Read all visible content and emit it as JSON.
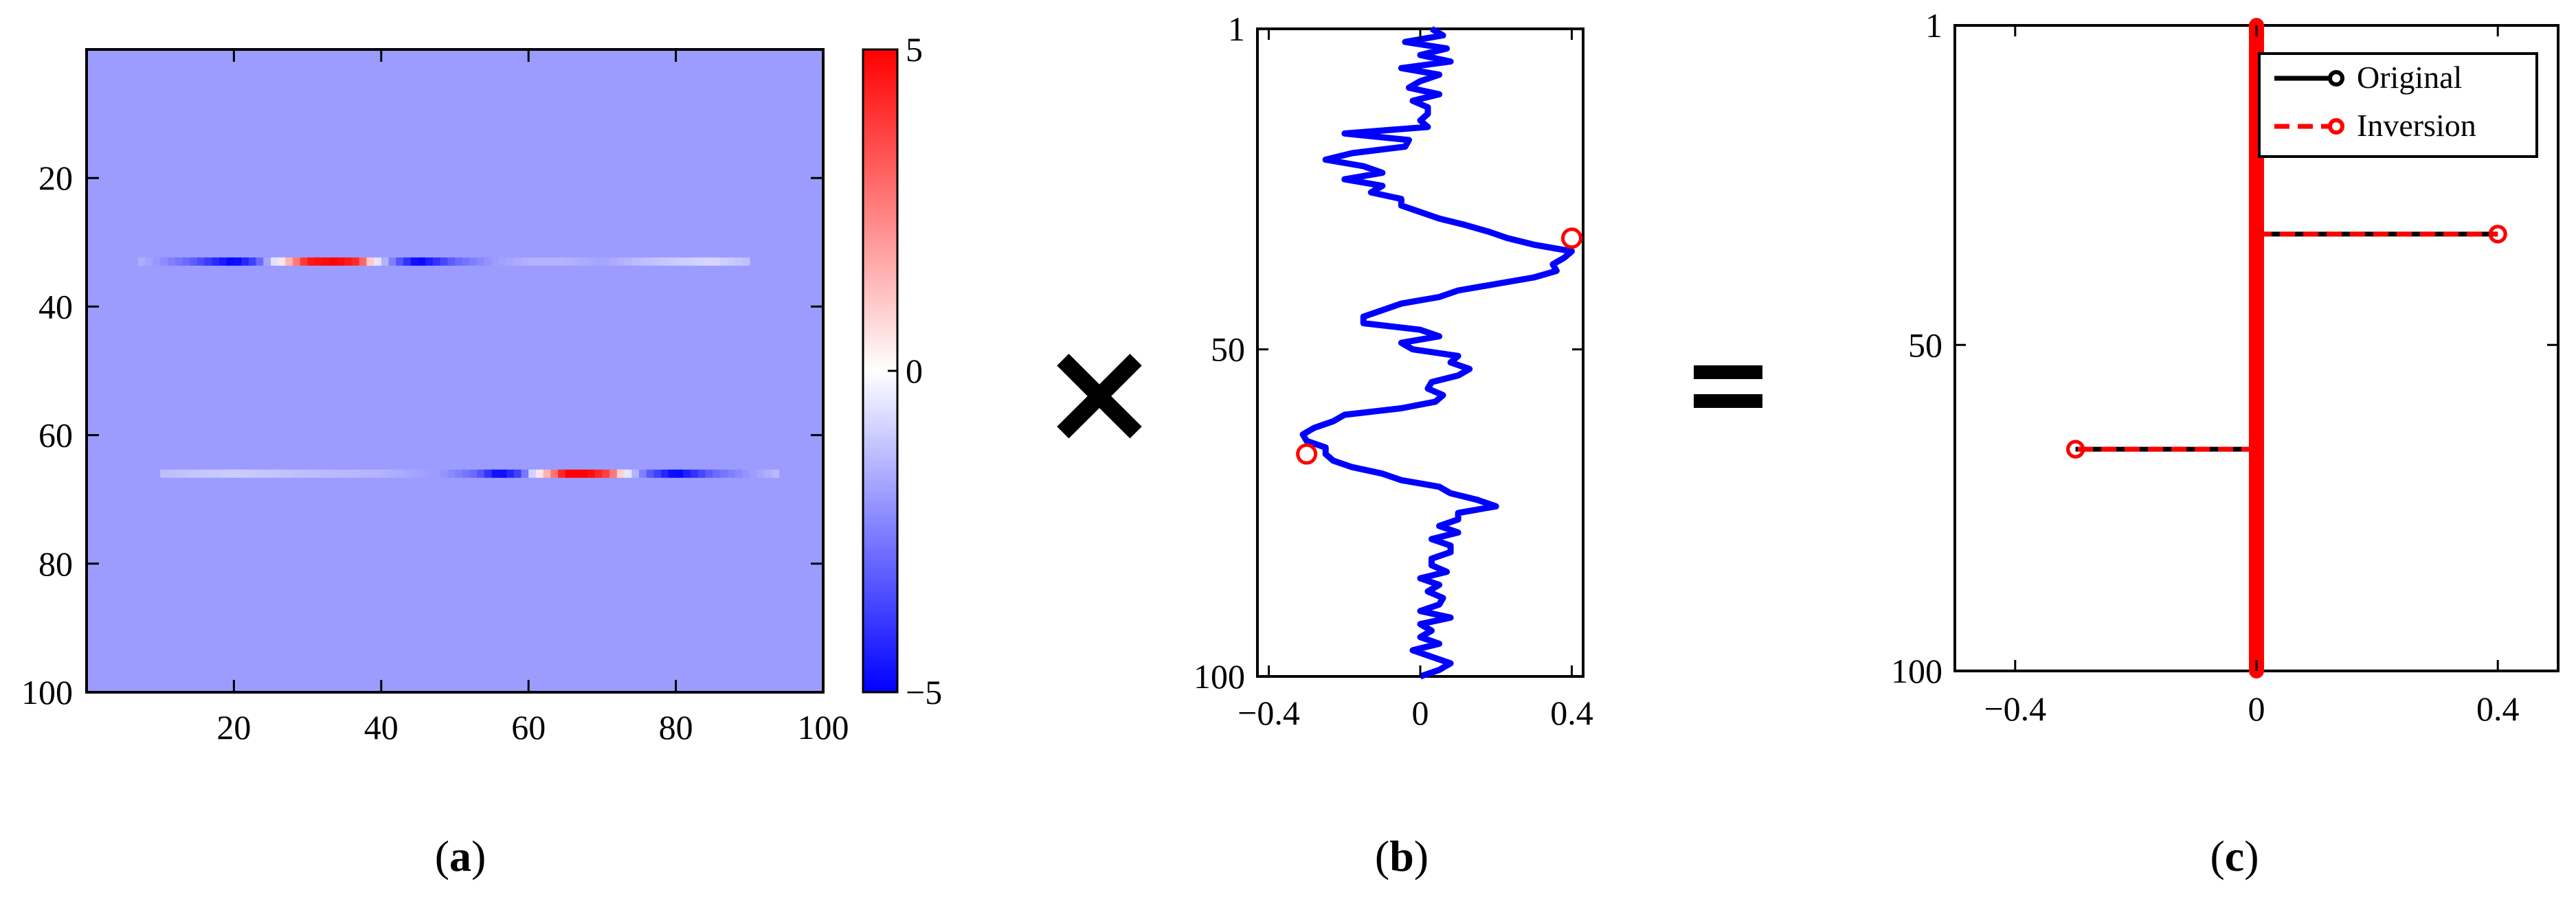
{
  "figure": {
    "operator_times": "×",
    "operator_equals": "="
  },
  "captions": {
    "a": {
      "open": "(",
      "letter": "a",
      "close": ")"
    },
    "b": {
      "open": "(",
      "letter": "b",
      "close": ")"
    },
    "c": {
      "open": "(",
      "letter": "c",
      "close": ")"
    }
  },
  "colors": {
    "background_field": "#9c9cff",
    "blue_line": "#0000ff",
    "red_marker": "#ff0000",
    "black": "#000000"
  },
  "chart_data": [
    {
      "id": "a",
      "type": "heatmap",
      "title": "",
      "xlabel": "",
      "ylabel": "",
      "xlim": [
        0,
        100
      ],
      "ylim": [
        100,
        0
      ],
      "xticks": [
        20,
        40,
        60,
        80,
        100
      ],
      "xtick_labels": [
        "20",
        "40",
        "60",
        "80",
        "100"
      ],
      "yticks": [
        20,
        40,
        60,
        80,
        100
      ],
      "ytick_labels": [
        "20",
        "40",
        "60",
        "80",
        "100"
      ],
      "background_value": -1.3,
      "rows": [
        {
          "row": 33,
          "x_start": 7,
          "x_end": 90,
          "profile": [
            {
              "x": 7,
              "v": -1.5
            },
            {
              "x": 14,
              "v": -3
            },
            {
              "x": 20,
              "v": -5
            },
            {
              "x": 23,
              "v": -3.5
            },
            {
              "x": 26,
              "v": 0
            },
            {
              "x": 28,
              "v": 2
            },
            {
              "x": 30,
              "v": 4.5
            },
            {
              "x": 34,
              "v": 5
            },
            {
              "x": 37,
              "v": 4
            },
            {
              "x": 39,
              "v": 0
            },
            {
              "x": 42,
              "v": -3
            },
            {
              "x": 45,
              "v": -5
            },
            {
              "x": 50,
              "v": -3
            },
            {
              "x": 55,
              "v": -2
            },
            {
              "x": 60,
              "v": -1.5
            },
            {
              "x": 65,
              "v": -1.5
            },
            {
              "x": 70,
              "v": -1.8
            },
            {
              "x": 75,
              "v": -1.3
            },
            {
              "x": 80,
              "v": -1
            },
            {
              "x": 85,
              "v": -0.8
            },
            {
              "x": 90,
              "v": -1.3
            }
          ]
        },
        {
          "row": 66,
          "x_start": 10,
          "x_end": 94,
          "profile": [
            {
              "x": 10,
              "v": -1.3
            },
            {
              "x": 20,
              "v": -1
            },
            {
              "x": 30,
              "v": -1.3
            },
            {
              "x": 40,
              "v": -1.5
            },
            {
              "x": 48,
              "v": -2
            },
            {
              "x": 53,
              "v": -3
            },
            {
              "x": 56,
              "v": -5
            },
            {
              "x": 59,
              "v": -3.5
            },
            {
              "x": 61,
              "v": 0
            },
            {
              "x": 63,
              "v": 2
            },
            {
              "x": 65,
              "v": 5
            },
            {
              "x": 68,
              "v": 5
            },
            {
              "x": 71,
              "v": 3.5
            },
            {
              "x": 73,
              "v": 0
            },
            {
              "x": 76,
              "v": -3
            },
            {
              "x": 80,
              "v": -5
            },
            {
              "x": 85,
              "v": -3
            },
            {
              "x": 90,
              "v": -2
            },
            {
              "x": 94,
              "v": -1.3
            }
          ]
        }
      ],
      "colorbar": {
        "min": -5,
        "max": 5,
        "ticks": [
          5,
          0,
          -5
        ],
        "tick_labels": [
          "5",
          "0",
          "−5"
        ],
        "colormap": [
          "#0000ff",
          "#ffffff",
          "#ff0000"
        ]
      }
    },
    {
      "id": "b",
      "type": "line",
      "title": "",
      "xlabel": "",
      "ylabel": "",
      "xlim": [
        -0.43,
        0.43
      ],
      "ylim": [
        100,
        1
      ],
      "xticks": [
        -0.4,
        0,
        0.4
      ],
      "xtick_labels": [
        "−0.4",
        "0",
        "0.4"
      ],
      "yticks": [
        1,
        50,
        100
      ],
      "ytick_labels": [
        "1",
        "50",
        "100"
      ],
      "series": [
        {
          "color": "#0000ff",
          "index": [
            1,
            2,
            3,
            4,
            5,
            6,
            7,
            8,
            9,
            10,
            11,
            12,
            13,
            14,
            15,
            16,
            17,
            18,
            19,
            20,
            21,
            22,
            23,
            24,
            25,
            26,
            27,
            28,
            29,
            30,
            31,
            32,
            33,
            34,
            35,
            36,
            37,
            38,
            39,
            40,
            41,
            42,
            43,
            44,
            45,
            46,
            47,
            48,
            49,
            50,
            51,
            52,
            53,
            54,
            55,
            56,
            57,
            58,
            59,
            60,
            61,
            62,
            63,
            64,
            65,
            66,
            67,
            68,
            69,
            70,
            71,
            72,
            73,
            74,
            75,
            76,
            77,
            78,
            79,
            80,
            81,
            82,
            83,
            84,
            85,
            86,
            87,
            88,
            89,
            90,
            91,
            92,
            93,
            94,
            95,
            96,
            97,
            98,
            99,
            100
          ],
          "values": [
            0.03,
            0.06,
            -0.04,
            0.07,
            0.0,
            0.08,
            -0.05,
            0.05,
            0.0,
            -0.03,
            0.05,
            -0.02,
            0.02,
            0.02,
            0.0,
            0.02,
            -0.2,
            -0.03,
            -0.04,
            -0.18,
            -0.25,
            -0.15,
            -0.1,
            -0.2,
            -0.1,
            -0.13,
            -0.05,
            -0.05,
            0.0,
            0.05,
            0.12,
            0.18,
            0.23,
            0.3,
            0.4,
            0.38,
            0.35,
            0.36,
            0.3,
            0.2,
            0.1,
            0.05,
            -0.05,
            -0.1,
            -0.15,
            -0.15,
            0.0,
            0.05,
            -0.05,
            -0.02,
            0.1,
            0.08,
            0.13,
            0.1,
            0.03,
            0.02,
            0.06,
            0.04,
            -0.05,
            -0.2,
            -0.23,
            -0.28,
            -0.31,
            -0.3,
            -0.25,
            -0.25,
            -0.23,
            -0.18,
            -0.1,
            -0.05,
            0.05,
            0.08,
            0.15,
            0.2,
            0.1,
            0.1,
            0.05,
            0.1,
            0.03,
            0.08,
            0.08,
            0.03,
            0.03,
            0.07,
            0.0,
            0.05,
            0.02,
            0.06,
            0.05,
            0.0,
            0.08,
            0.0,
            0.03,
            0.0,
            0.05,
            -0.02,
            0.03,
            0.08,
            0.05,
            0.0
          ]
        }
      ],
      "markers": [
        {
          "index": 33,
          "value": 0.4,
          "color": "#ff0000"
        },
        {
          "index": 66,
          "value": -0.3,
          "color": "#ff0000"
        }
      ]
    },
    {
      "id": "c",
      "type": "stem",
      "title": "",
      "xlabel": "",
      "ylabel": "",
      "xlim": [
        -0.5,
        0.5
      ],
      "ylim": [
        100,
        1
      ],
      "xticks": [
        -0.4,
        0,
        0.4
      ],
      "xtick_labels": [
        "−0.4",
        "0",
        "0.4"
      ],
      "yticks": [
        1,
        50,
        100
      ],
      "ytick_labels": [
        "1",
        "50",
        "100"
      ],
      "series": [
        {
          "name": "Original",
          "color": "#000000",
          "line": "solid",
          "nonzero": [
            {
              "index": 33,
              "value": 0.4
            },
            {
              "index": 66,
              "value": -0.3
            }
          ]
        },
        {
          "name": "Inversion",
          "color": "#ff0000",
          "line": "dashed",
          "nonzero": [
            {
              "index": 33,
              "value": 0.4
            },
            {
              "index": 66,
              "value": -0.3
            }
          ]
        }
      ],
      "n_points": 100,
      "legend": "top-right"
    }
  ]
}
